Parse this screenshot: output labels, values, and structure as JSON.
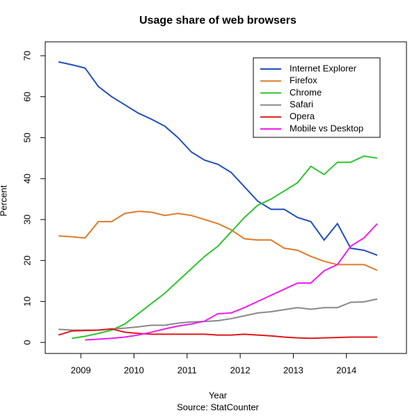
{
  "chart_data": {
    "type": "line",
    "title": "Usage share of web browsers",
    "xlabel": "Year",
    "ylabel": "Percent",
    "source": "Source: StatCounter",
    "x": [
      2008.58,
      2008.83,
      2009.08,
      2009.33,
      2009.58,
      2009.83,
      2010.08,
      2010.33,
      2010.58,
      2010.83,
      2011.08,
      2011.33,
      2011.58,
      2011.83,
      2012.08,
      2012.33,
      2012.58,
      2012.83,
      2013.08,
      2013.33,
      2013.58,
      2013.83,
      2014.08,
      2014.33,
      2014.58
    ],
    "series": [
      {
        "name": "Internet Explorer",
        "color": "#1f4fbf",
        "values": [
          68.5,
          67.8,
          67,
          62.5,
          60,
          58,
          56,
          54.5,
          52.8,
          50,
          46.5,
          44.5,
          43.5,
          41.5,
          38,
          34.5,
          32.5,
          32.5,
          30.5,
          29.5,
          25,
          29,
          23,
          22.5,
          21.3
        ]
      },
      {
        "name": "Firefox",
        "color": "#e07a2a",
        "values": [
          26,
          25.8,
          25.5,
          29.5,
          29.5,
          31.5,
          32,
          31.8,
          31,
          31.5,
          31,
          30,
          29,
          27.5,
          25.3,
          25,
          25,
          23,
          22.5,
          21,
          19.8,
          19,
          19,
          19,
          17.6
        ]
      },
      {
        "name": "Chrome",
        "color": "#2ec42e",
        "values": [
          null,
          1,
          1.5,
          2.2,
          3,
          4.5,
          7,
          9.5,
          12,
          15,
          18,
          21,
          23.5,
          27,
          30.5,
          33.5,
          35,
          37,
          39,
          43,
          41,
          44,
          44,
          45.5,
          45
        ]
      },
      {
        "name": "Safari",
        "color": "#888888",
        "values": [
          3.2,
          3,
          3,
          3,
          3.3,
          3.5,
          3.8,
          4.2,
          4.2,
          4.7,
          5,
          5.1,
          5.3,
          5.8,
          6.5,
          7.2,
          7.5,
          8,
          8.5,
          8.1,
          8.5,
          8.5,
          9.8,
          9.9,
          10.6
        ]
      },
      {
        "name": "Opera",
        "color": "#e01818",
        "values": [
          1.8,
          2.8,
          2.9,
          3,
          3.3,
          2.5,
          2.2,
          2,
          2,
          2,
          2,
          2,
          1.8,
          1.8,
          2,
          1.8,
          1.6,
          1.3,
          1.1,
          1,
          1.1,
          1.2,
          1.3,
          1.3,
          1.3
        ]
      },
      {
        "name": "Mobile vs Desktop",
        "color": "#f01df0",
        "values": [
          null,
          null,
          0.6,
          0.8,
          1,
          1.3,
          1.8,
          2.5,
          3.3,
          4,
          4.5,
          5.2,
          7,
          7.2,
          8.5,
          10,
          11.5,
          13,
          14.5,
          14.5,
          17.5,
          19,
          23.5,
          25.5,
          29
        ]
      }
    ],
    "xlim": [
      2008.33,
      2015.13
    ],
    "ylim": [
      -2.7,
      73.4
    ],
    "xticks": [
      2009,
      2010,
      2011,
      2012,
      2013,
      2014
    ],
    "yticks": [
      0,
      10,
      20,
      30,
      40,
      50,
      60,
      70
    ],
    "legend": "top-right"
  }
}
